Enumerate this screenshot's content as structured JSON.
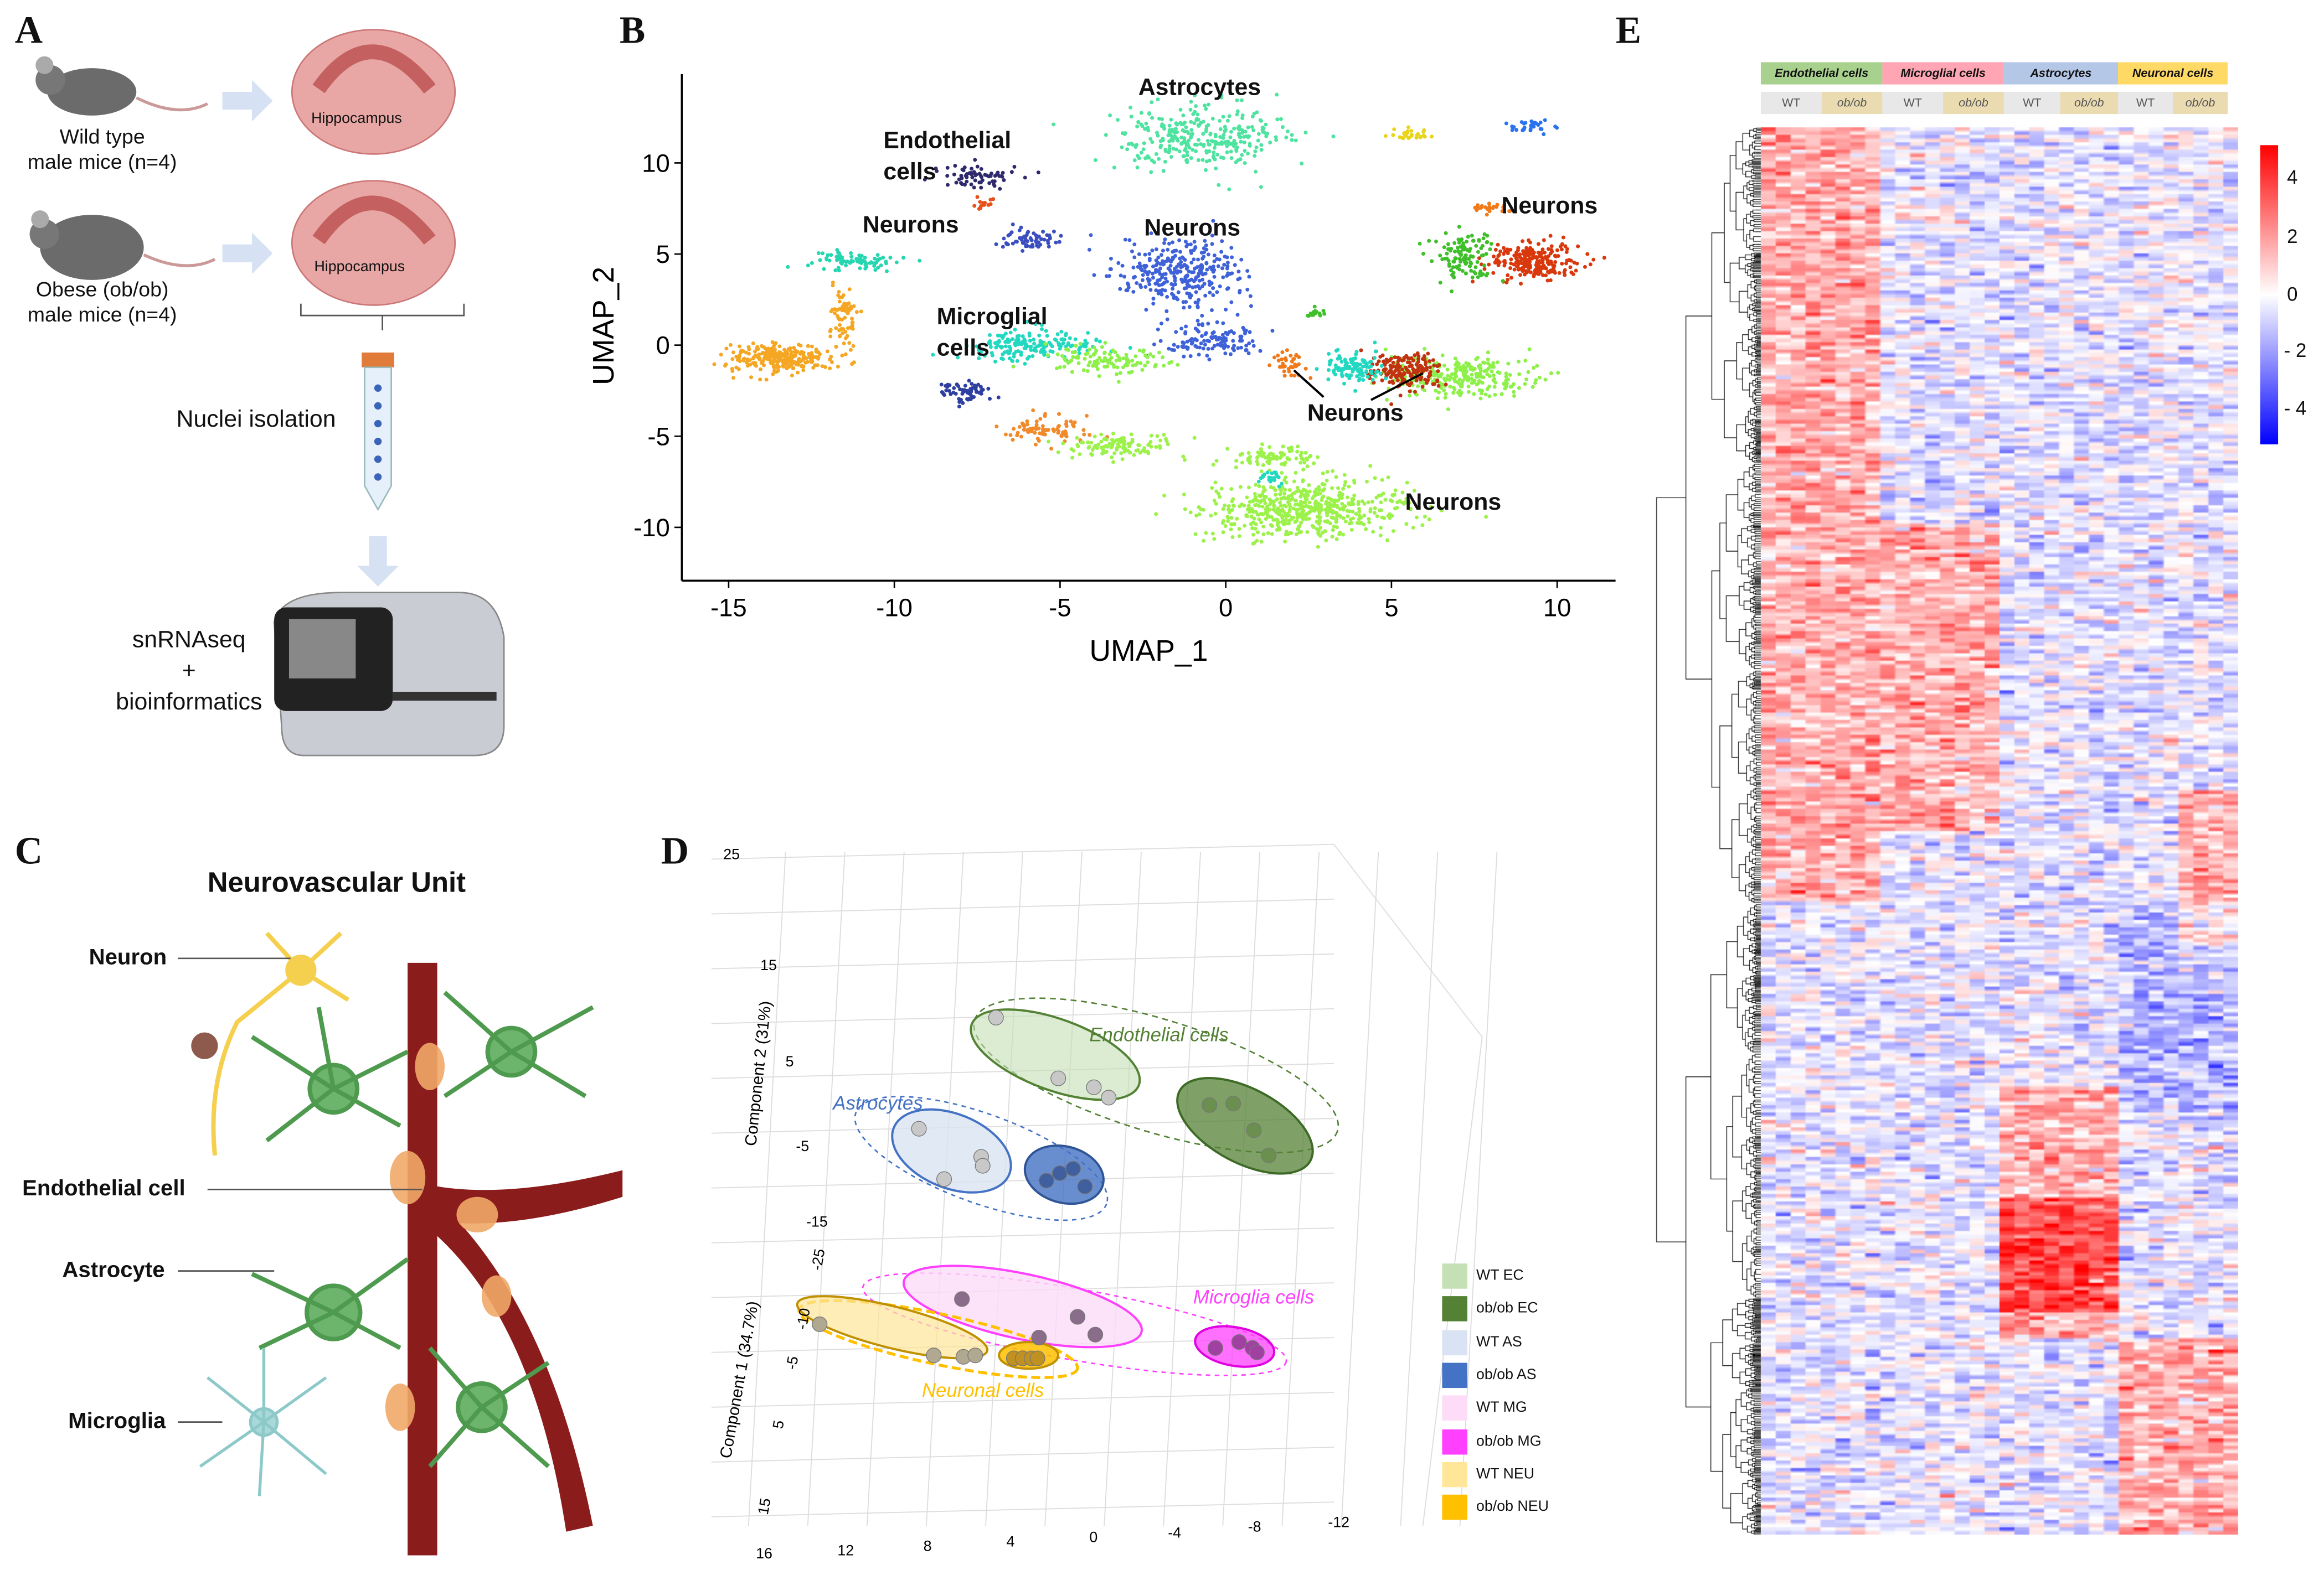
{
  "panels": {
    "a": {
      "letter": "A",
      "wt_label": "Wild type\nmale mice (n=4)",
      "wt_line1": "Wild type",
      "wt_line2": "male mice (n=4)",
      "ob_line1": "Obese (ob/ob)",
      "ob_line2": "male mice (n=4)",
      "hippocampus": "Hippocampus",
      "nuclei": "Nuclei isolation",
      "seq1": "snRNAseq",
      "seq2": "+",
      "seq3": "bioinformatics"
    },
    "b": {
      "letter": "B"
    },
    "c": {
      "letter": "C",
      "title": "Neurovascular Unit",
      "neuron": "Neuron",
      "endothelial": "Endothelial cell",
      "astrocyte": "Astrocyte",
      "microglia": "Microglia"
    },
    "d": {
      "letter": "D"
    },
    "e": {
      "letter": "E"
    }
  },
  "chart_data": [
    {
      "id": "umap",
      "type": "scatter",
      "xlabel": "UMAP_1",
      "ylabel": "UMAP_2",
      "xlim": [
        -16.5,
        11.8
      ],
      "ylim": [
        -12.8,
        14.8
      ],
      "xticks": [
        -15,
        -10,
        -5,
        0,
        5,
        10
      ],
      "yticks": [
        10,
        5,
        0,
        -5,
        -10
      ],
      "annotations": [
        "Astrocytes",
        "Endothelial cells",
        "Neurons",
        "Neurons",
        "Microglial cells",
        "Neurons",
        "Neurons",
        "Neurons"
      ],
      "clusters": [
        {
          "x": -13.4,
          "y": -0.7,
          "sx": 1.4,
          "sy": 0.7,
          "n": 260,
          "color": "#f5a623"
        },
        {
          "x": -11.6,
          "y": 1.5,
          "sx": 0.4,
          "sy": 1.5,
          "n": 70,
          "color": "#f5a623"
        },
        {
          "x": -0.8,
          "y": 11.5,
          "sx": 2.3,
          "sy": 1.6,
          "n": 320,
          "color": "#4fe3a0"
        },
        {
          "x": -7.6,
          "y": 9.2,
          "sx": 1.2,
          "sy": 0.6,
          "n": 70,
          "color": "#2e2a6b"
        },
        {
          "x": -5.9,
          "y": 5.8,
          "sx": 0.7,
          "sy": 0.6,
          "n": 60,
          "color": "#3b4ec0"
        },
        {
          "x": -11.3,
          "y": 4.6,
          "sx": 1.3,
          "sy": 0.5,
          "n": 80,
          "color": "#25d6b0"
        },
        {
          "x": -1.3,
          "y": 3.9,
          "sx": 1.8,
          "sy": 1.7,
          "n": 320,
          "color": "#3f62d8"
        },
        {
          "x": -0.5,
          "y": 0.3,
          "sx": 1.3,
          "sy": 0.8,
          "n": 120,
          "color": "#3f62d8"
        },
        {
          "x": -5.8,
          "y": 0.0,
          "sx": 2.0,
          "sy": 0.7,
          "n": 180,
          "color": "#22d8c0"
        },
        {
          "x": -3.8,
          "y": -0.8,
          "sx": 1.6,
          "sy": 0.7,
          "n": 120,
          "color": "#8ef04a"
        },
        {
          "x": -7.8,
          "y": -2.6,
          "sx": 0.8,
          "sy": 0.5,
          "n": 60,
          "color": "#2e3fa0"
        },
        {
          "x": 2.4,
          "y": -9.0,
          "sx": 2.8,
          "sy": 1.3,
          "n": 560,
          "color": "#9cf24b"
        },
        {
          "x": 1.5,
          "y": -6.2,
          "sx": 1.4,
          "sy": 0.6,
          "n": 90,
          "color": "#9cf24b"
        },
        {
          "x": -5.4,
          "y": -4.6,
          "sx": 1.1,
          "sy": 0.8,
          "n": 80,
          "color": "#f08a2a"
        },
        {
          "x": -3.2,
          "y": -5.5,
          "sx": 1.6,
          "sy": 0.6,
          "n": 110,
          "color": "#9cf24b"
        },
        {
          "x": 9.3,
          "y": 4.6,
          "sx": 1.2,
          "sy": 0.9,
          "n": 230,
          "color": "#d9380d"
        },
        {
          "x": 7.2,
          "y": 4.8,
          "sx": 0.8,
          "sy": 1.2,
          "n": 120,
          "color": "#3fbf2a"
        },
        {
          "x": 7.0,
          "y": -1.7,
          "sx": 1.9,
          "sy": 1.0,
          "n": 260,
          "color": "#8ef04a"
        },
        {
          "x": 5.4,
          "y": -1.4,
          "sx": 1.0,
          "sy": 0.9,
          "n": 180,
          "color": "#c0330f"
        },
        {
          "x": 3.8,
          "y": -1.2,
          "sx": 0.8,
          "sy": 0.8,
          "n": 110,
          "color": "#22d8c0"
        },
        {
          "x": 1.9,
          "y": -1.0,
          "sx": 0.4,
          "sy": 0.6,
          "n": 40,
          "color": "#f07a1a"
        },
        {
          "x": 8.0,
          "y": 7.5,
          "sx": 0.5,
          "sy": 0.3,
          "n": 25,
          "color": "#f07a1a"
        },
        {
          "x": 5.6,
          "y": 11.5,
          "sx": 0.7,
          "sy": 0.3,
          "n": 30,
          "color": "#e8d41a"
        },
        {
          "x": 9.2,
          "y": 12.0,
          "sx": 0.6,
          "sy": 0.3,
          "n": 30,
          "color": "#2a72f0"
        },
        {
          "x": -7.3,
          "y": 7.7,
          "sx": 0.3,
          "sy": 0.3,
          "n": 15,
          "color": "#e8501a"
        },
        {
          "x": 2.7,
          "y": 1.8,
          "sx": 0.3,
          "sy": 0.3,
          "n": 15,
          "color": "#3fbf2a"
        },
        {
          "x": 1.4,
          "y": -7.3,
          "sx": 0.3,
          "sy": 0.4,
          "n": 25,
          "color": "#22d8c0"
        }
      ]
    },
    {
      "id": "pca3d",
      "type": "scatter",
      "axis_y": "Component 2 (31%)",
      "axis_x": "Component 1 (34.7%)",
      "y_ticks": [
        "25",
        "15",
        "5",
        "-5",
        "-15"
      ],
      "x_ticks": [
        "-25",
        "-10",
        "-5",
        "5",
        "15"
      ],
      "z_ticks": [
        "16",
        "12",
        "8",
        "4",
        "0",
        "-4",
        "-8",
        "-12"
      ],
      "group_labels": [
        "Endothelial cells",
        "Astrocytes",
        "Microglia cells",
        "Neuronal cells"
      ],
      "legend": [
        {
          "label": "WT EC",
          "color": "#c5e0b4"
        },
        {
          "label": "ob/ob EC",
          "color": "#548235"
        },
        {
          "label": "WT AS",
          "color": "#dae3f3"
        },
        {
          "label": "ob/ob AS",
          "color": "#4472c4"
        },
        {
          "label": "WT MG",
          "color": "#fcdcf7"
        },
        {
          "label": "ob/ob MG",
          "color": "#ff40ff"
        },
        {
          "label": "WT NEU",
          "color": "#ffe699"
        },
        {
          "label": "ob/ob NEU",
          "color": "#ffc000"
        }
      ]
    },
    {
      "id": "heatmap",
      "type": "heatmap",
      "groups": [
        {
          "label": "Endothelial cells",
          "color": "#a9d18e"
        },
        {
          "label": "Microglial cells",
          "color": "#ffa5b3"
        },
        {
          "label": "Astrocytes",
          "color": "#b4c7e7"
        },
        {
          "label": "Neuronal cells",
          "color": "#ffd966"
        }
      ],
      "conditions": [
        "WT",
        "ob/ob",
        "WT",
        "ob/ob",
        "WT",
        "ob/ob",
        "WT",
        "ob/ob"
      ],
      "samples_per_condition": 4,
      "colorbar": {
        "range": [
          -5,
          5
        ],
        "ticks": [
          "4",
          "2",
          "0",
          "- 2",
          "- 4"
        ],
        "low": "#0000ff",
        "mid": "#ffffff",
        "high": "#ff0000"
      }
    }
  ]
}
